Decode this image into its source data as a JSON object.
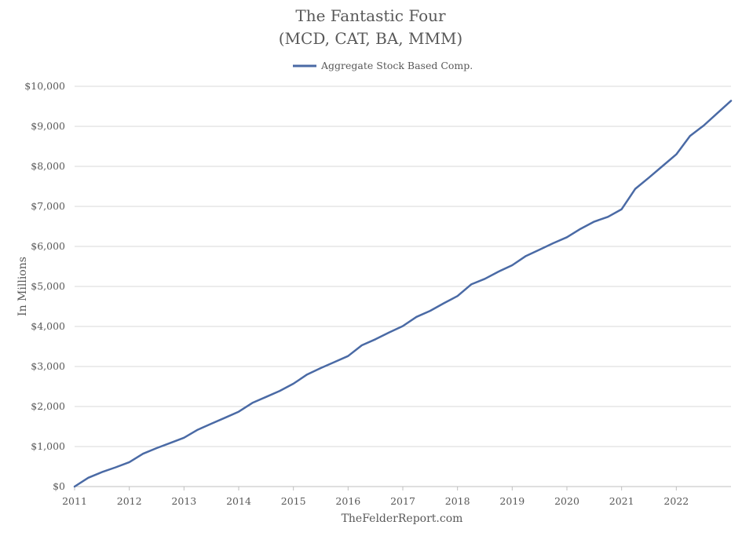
{
  "chart_data": {
    "type": "line",
    "title": "The Fantastic Four",
    "subtitle": "(MCD, CAT, BA, MMM)",
    "xlabel": "",
    "ylabel": "In Millions",
    "source": "TheFelderReport.com",
    "x_ticks": [
      "2011",
      "2012",
      "2013",
      "2014",
      "2015",
      "2016",
      "2017",
      "2018",
      "2019",
      "2020",
      "2021",
      "2022"
    ],
    "y_ticks": [
      "$0",
      "$1,000",
      "$2,000",
      "$3,000",
      "$4,000",
      "$5,000",
      "$6,000",
      "$7,000",
      "$8,000",
      "$9,000",
      "$10,000"
    ],
    "ylim": [
      0,
      10000
    ],
    "xlim": [
      2011.0,
      2023.0
    ],
    "grid": true,
    "legend_position": "top",
    "series": [
      {
        "name": "Aggregate Stock Based Comp.",
        "color": "#4a6aa5",
        "x": [
          2011.0,
          2011.25,
          2011.5,
          2011.75,
          2012.0,
          2012.25,
          2012.5,
          2012.75,
          2013.0,
          2013.25,
          2013.5,
          2013.75,
          2014.0,
          2014.25,
          2014.5,
          2014.75,
          2015.0,
          2015.25,
          2015.5,
          2015.75,
          2016.0,
          2016.25,
          2016.5,
          2016.75,
          2017.0,
          2017.25,
          2017.5,
          2017.75,
          2018.0,
          2018.25,
          2018.5,
          2018.75,
          2019.0,
          2019.25,
          2019.5,
          2019.75,
          2020.0,
          2020.25,
          2020.5,
          2020.75,
          2021.0,
          2021.25,
          2021.5,
          2021.75,
          2022.0,
          2022.25,
          2022.5,
          2022.75,
          2023.0
        ],
        "y": [
          0,
          220,
          360,
          480,
          610,
          820,
          960,
          1090,
          1220,
          1420,
          1570,
          1720,
          1870,
          2090,
          2240,
          2390,
          2570,
          2800,
          2960,
          3110,
          3260,
          3530,
          3680,
          3850,
          4010,
          4240,
          4390,
          4580,
          4760,
          5050,
          5190,
          5370,
          5530,
          5760,
          5920,
          6080,
          6230,
          6440,
          6620,
          6740,
          6930,
          7440,
          7720,
          8010,
          8300,
          8760,
          9020,
          9330,
          9640
        ]
      }
    ]
  }
}
